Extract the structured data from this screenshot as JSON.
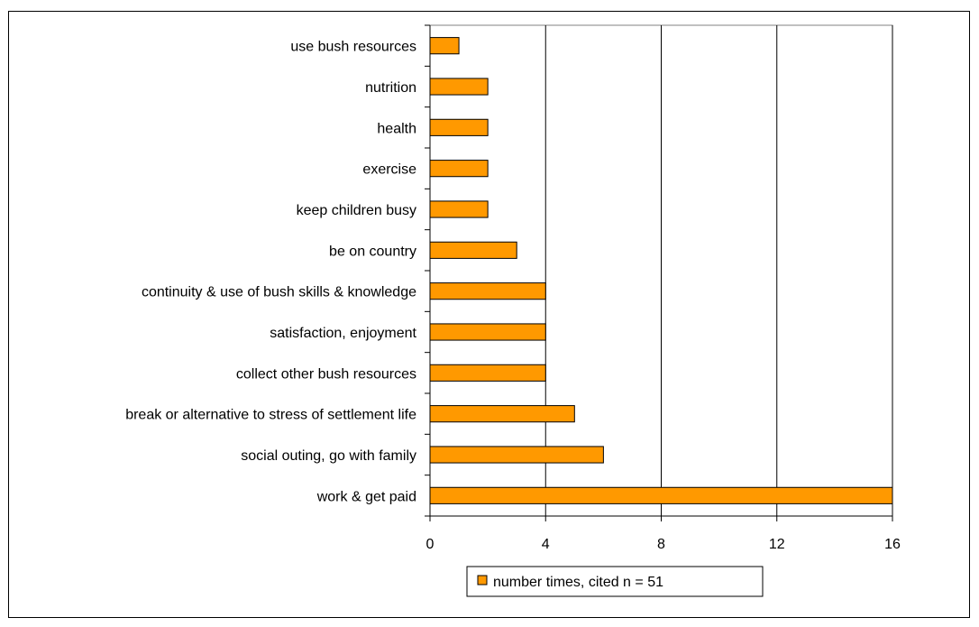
{
  "chart_data": {
    "type": "bar",
    "orientation": "horizontal",
    "categories": [
      "use bush resources",
      "nutrition",
      "health",
      "exercise",
      "keep children busy",
      "be on country",
      "continuity & use of bush skills & knowledge",
      "satisfaction, enjoyment",
      "collect other bush resources",
      "break or alternative to stress of settlement life",
      "social outing, go with family",
      "work & get paid"
    ],
    "series": [
      {
        "name": "number times, cited n = 51",
        "values": [
          1,
          2,
          2,
          2,
          2,
          3,
          4,
          4,
          4,
          5,
          6,
          16
        ],
        "color": "#FF9900"
      }
    ],
    "xlim": [
      0,
      16
    ],
    "xticks": [
      "0",
      "4",
      "8",
      "12",
      "16"
    ],
    "title": "",
    "xlabel": "",
    "ylabel": "",
    "grid": "vertical",
    "legend": "bottom-center"
  }
}
